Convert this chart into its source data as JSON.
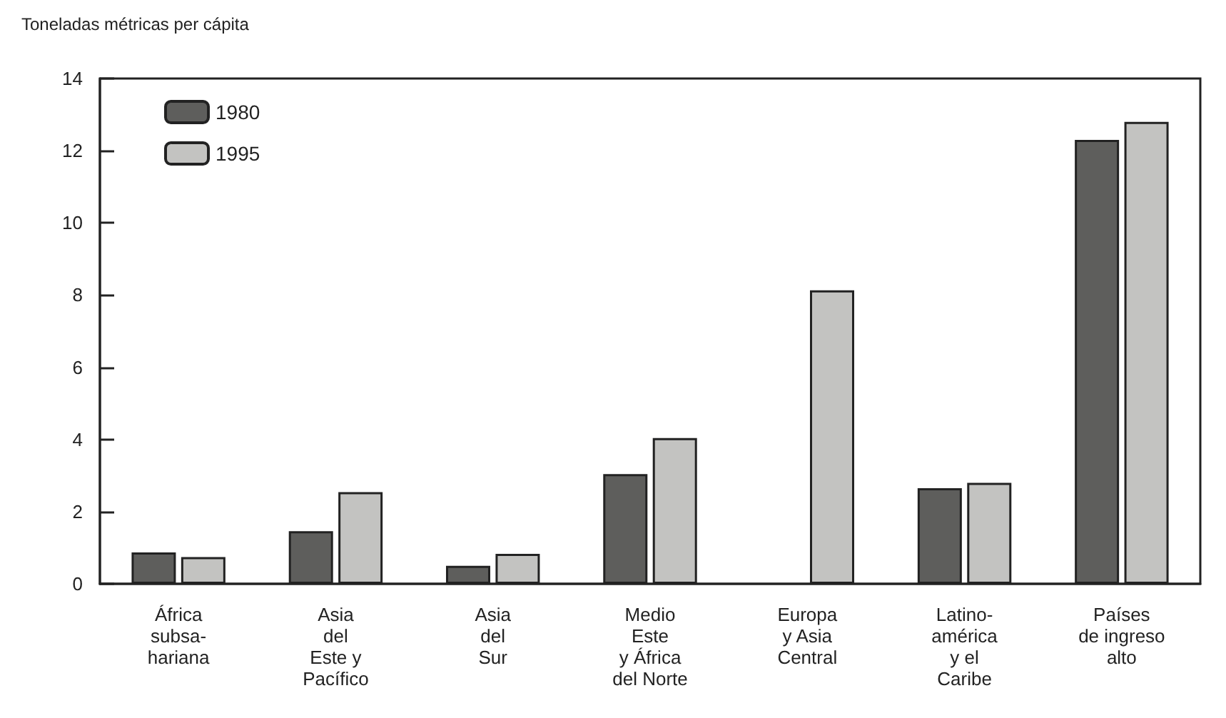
{
  "chart_data": {
    "type": "bar",
    "ylabel": "Toneladas métricas per cápita",
    "categories": [
      "África\nsubsa-\nhariana",
      "Asia\ndel\nEste y\nPacífico",
      "Asia\ndel\nSur",
      "Medio\nEste\ny África\ndel Norte",
      "Europa\ny Asia\nCentral",
      "Latino-\namérica\ny el\nCaribe",
      "Países\nde ingreso\nalto"
    ],
    "series": [
      {
        "name": "1980",
        "color": "#5e5e5c",
        "values": [
          0.87,
          1.46,
          0.5,
          3.04,
          null,
          2.65,
          12.3
        ]
      },
      {
        "name": "1995",
        "color": "#c3c3c1",
        "values": [
          0.74,
          2.54,
          0.83,
          4.04,
          8.13,
          2.8,
          12.8
        ]
      }
    ],
    "ylim": [
      0,
      14
    ],
    "yticks": [
      0,
      2,
      4,
      6,
      8,
      10,
      12,
      14
    ],
    "grid": false,
    "legend": "top left"
  }
}
